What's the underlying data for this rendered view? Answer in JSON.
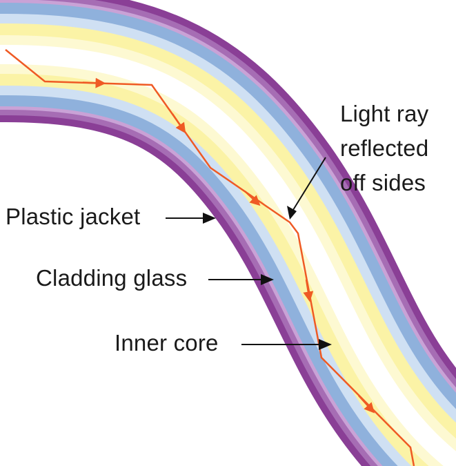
{
  "labels": {
    "light_ray": [
      "Light ray",
      "reflected",
      "off sides"
    ],
    "plastic_jacket": "Plastic jacket",
    "cladding_glass": "Cladding glass",
    "inner_core": "Inner core"
  },
  "colors": {
    "jacket_edge": "#8a3f96",
    "jacket_mid": "#c9a2d6",
    "cladding_edge": "#8fb1dc",
    "cladding_mid": "#cfe0f3",
    "core_edge": "#fbf3a6",
    "core_mid": "#ffffff",
    "ray": "#ef5a24",
    "arrow": "#111111"
  }
}
